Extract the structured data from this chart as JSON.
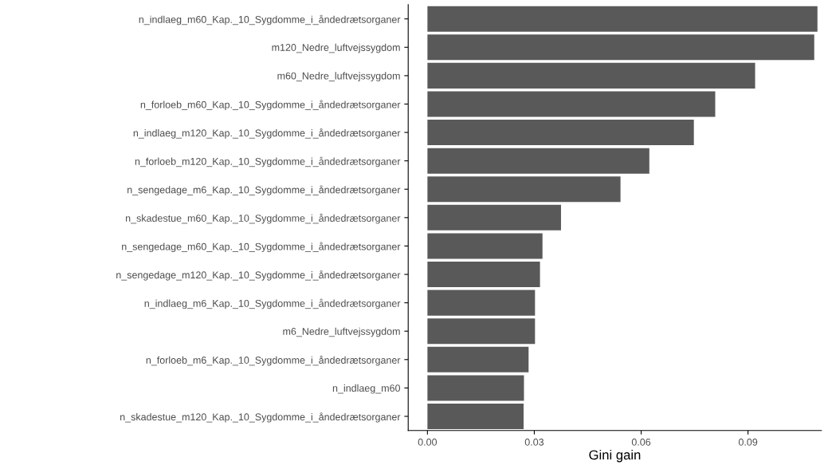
{
  "chart_data": {
    "type": "bar",
    "orientation": "horizontal",
    "xlabel": "Gini gain",
    "categories": [
      "n_indlaeg_m60_Kap._10_Sygdomme_i_åndedrætsorganer",
      "m120_Nedre_luftvejssygdom",
      "m60_Nedre_luftvejssygdom",
      "n_forloeb_m60_Kap._10_Sygdomme_i_åndedrætsorganer",
      "n_indlaeg_m120_Kap._10_Sygdomme_i_åndedrætsorganer",
      "n_forloeb_m120_Kap._10_Sygdomme_i_åndedrætsorganer",
      "n_sengedage_m6_Kap._10_Sygdomme_i_åndedrætsorganer",
      "n_skadestue_m60_Kap._10_Sygdomme_i_åndedrætsorganer",
      "n_sengedage_m60_Kap._10_Sygdomme_i_åndedrætsorganer",
      "n_sengedage_m120_Kap._10_Sygdomme_i_åndedrætsorganer",
      "n_indlaeg_m6_Kap._10_Sygdomme_i_åndedrætsorganer",
      "m6_Nedre_luftvejssygdom",
      "n_forloeb_m6_Kap._10_Sygdomme_i_åndedrætsorganer",
      "n_indlaeg_m60",
      "n_skadestue_m120_Kap._10_Sygdomme_i_åndedrætsorganer"
    ],
    "values": [
      0.1095,
      0.1086,
      0.092,
      0.0808,
      0.0748,
      0.0623,
      0.0542,
      0.0375,
      0.0323,
      0.0316,
      0.0302,
      0.0302,
      0.0284,
      0.0271,
      0.027
    ],
    "color": "#595959",
    "xlim": [
      -0.0054,
      0.1106
    ],
    "xticks": [
      {
        "value": 0,
        "label": "0.00"
      },
      {
        "value": 0.03,
        "label": "0.03"
      },
      {
        "value": 0.06,
        "label": "0.06"
      },
      {
        "value": 0.09,
        "label": "0.09"
      }
    ],
    "grid": false
  }
}
